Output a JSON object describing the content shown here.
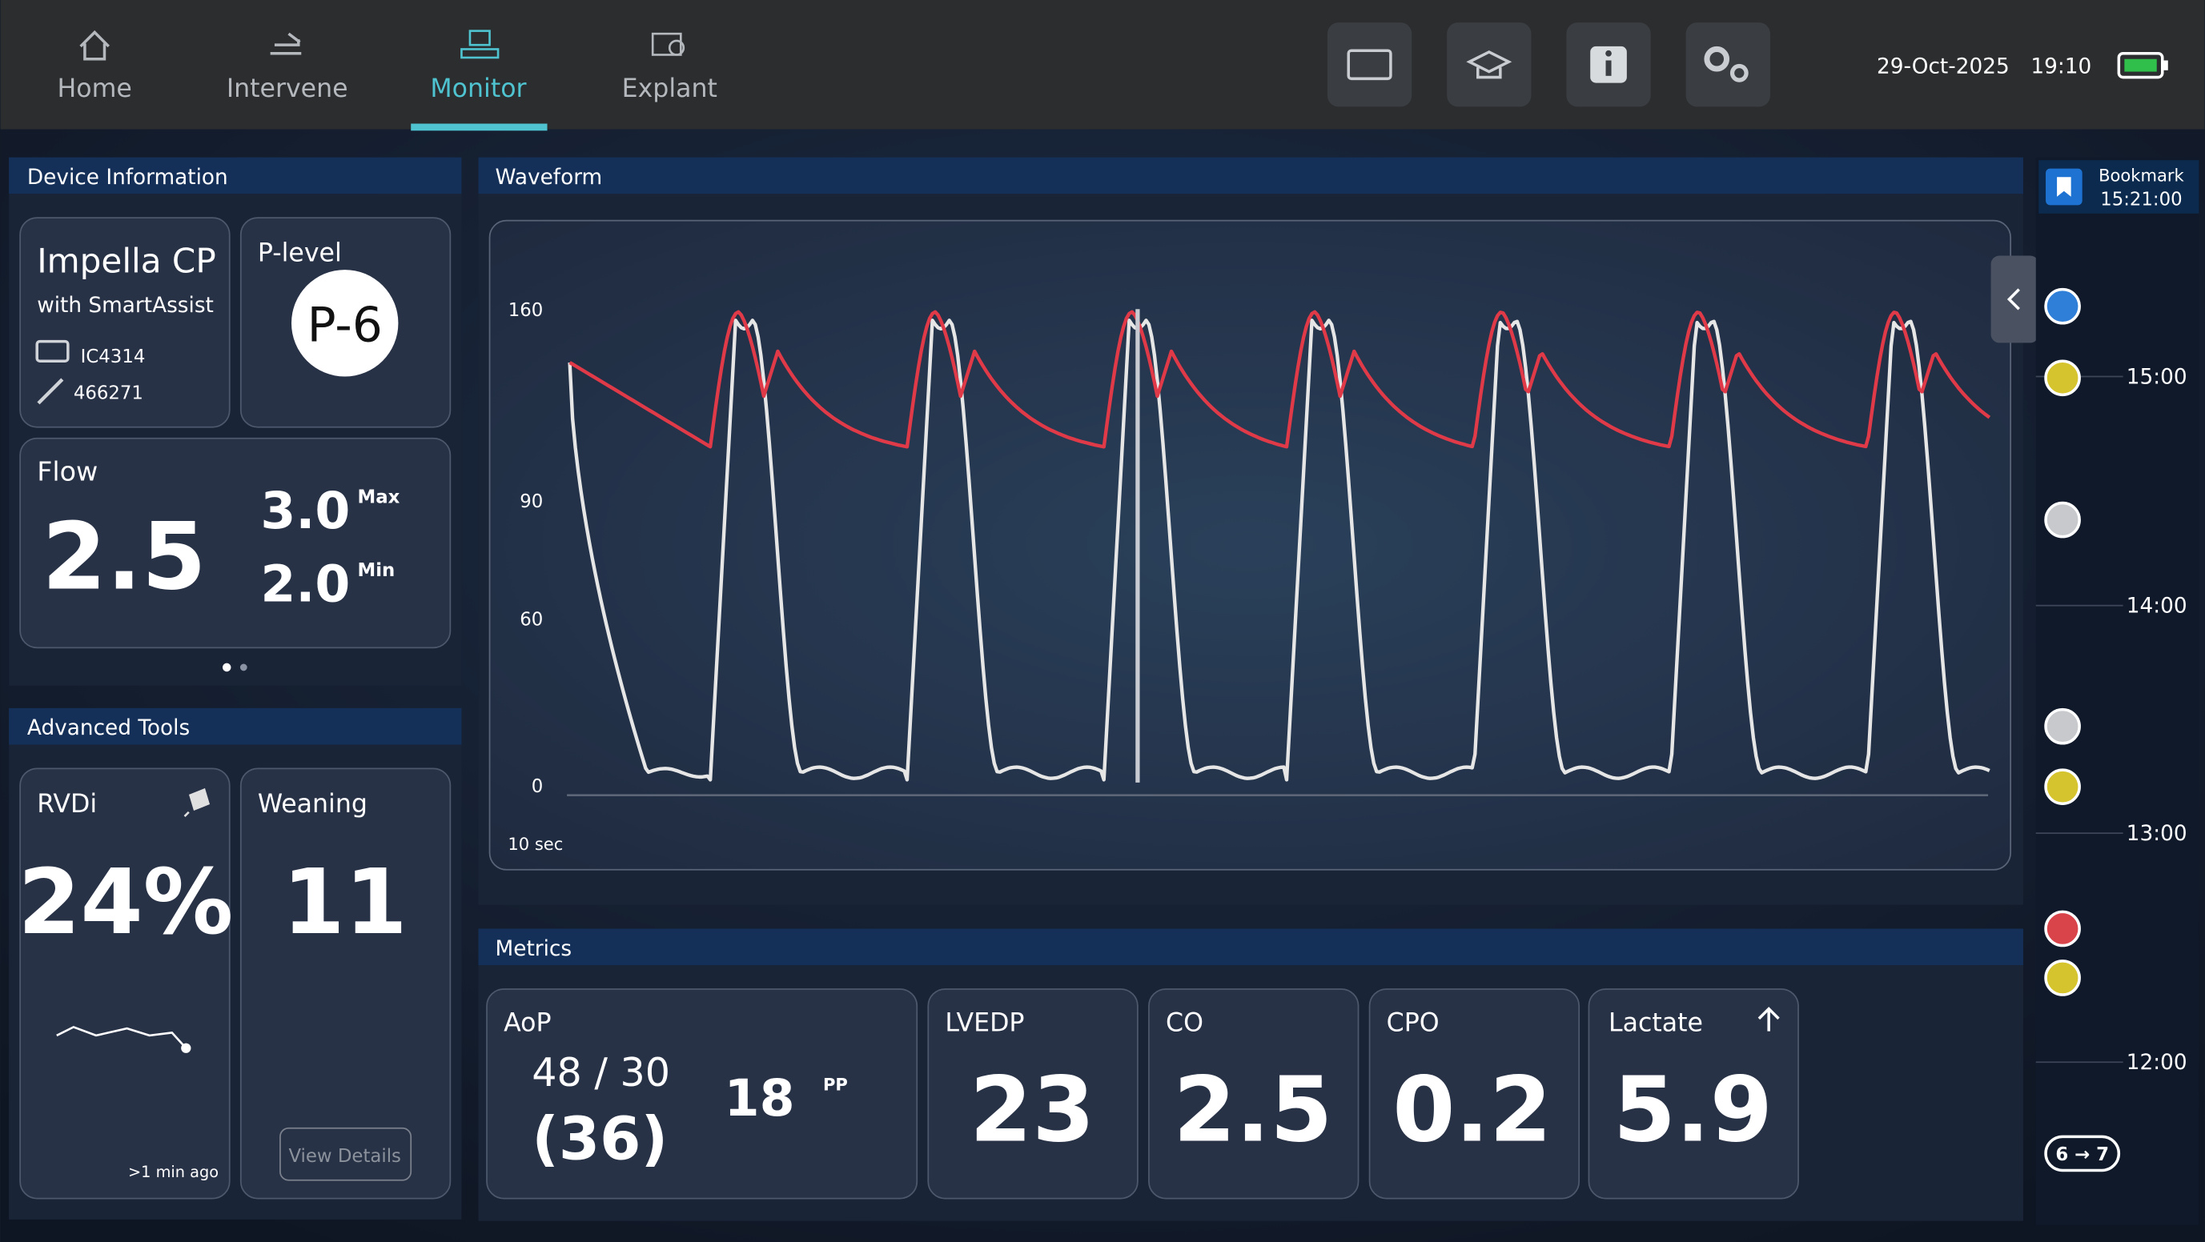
{
  "nav": {
    "tabs": [
      "Home",
      "Intervene",
      "Monitor",
      "Explant"
    ],
    "date": "29-Oct-2025",
    "time": "19:10"
  },
  "device_information": {
    "title": "Device Information",
    "device": "Impella CP",
    "subtitle": "with SmartAssist",
    "console_id": "IC4314",
    "pump_id": "466271",
    "p_level_label": "P-level",
    "p_level": "P-6",
    "flow_label": "Flow",
    "flow": "2.5",
    "flow_max": "3.0",
    "max_label": "Max",
    "flow_min": "2.0",
    "min_label": "Min"
  },
  "waveform": {
    "title": "Waveform",
    "yticks": [
      "160",
      "90",
      "60",
      "0"
    ],
    "time_span": "10 sec"
  },
  "advanced_tools": {
    "title": "Advanced Tools",
    "rvdi_label": "RVDi",
    "rvdi": "24%",
    "rvdi_updated": ">1 min ago",
    "weaning_label": "Weaning",
    "weaning": "11",
    "view_details": "View Details"
  },
  "metrics": {
    "title": "Metrics",
    "aop_label": "AoP",
    "aop_sys_dia": "48 / 30",
    "aop_mean": "(36)",
    "pp": "18",
    "pp_label": "PP",
    "lvedp_label": "LVEDP",
    "lvedp": "23",
    "co_label": "CO",
    "co": "2.5",
    "cpo_label": "CPO",
    "cpo": "0.2",
    "lactate_label": "Lactate",
    "lactate": "5.9"
  },
  "timeline": {
    "bookmark_label": "Bookmark",
    "bookmark_time": "15:21:00",
    "times": [
      "15:00",
      "14:00",
      "13:00",
      "12:00"
    ],
    "badge": "6 → 7"
  }
}
